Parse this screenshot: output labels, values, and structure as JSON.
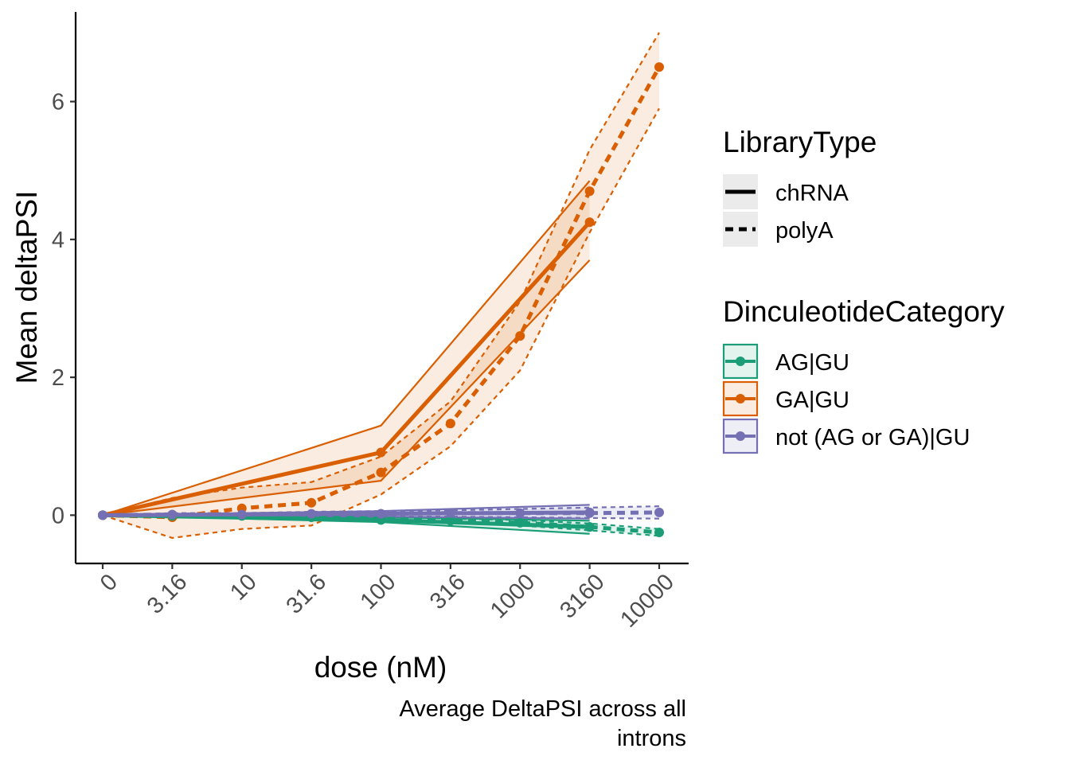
{
  "chart_data": {
    "type": "line",
    "xlabel": "dose (nM)",
    "ylabel": "Mean deltaPSI",
    "caption_lines": [
      "Average DeltaPSI across all",
      "introns"
    ],
    "x_ticks": [
      "0",
      "3.16",
      "10",
      "31.6",
      "100",
      "316",
      "1000",
      "3160",
      "10000"
    ],
    "y_ticks": [
      0,
      2,
      4,
      6
    ],
    "ylim": [
      -0.7,
      7.3
    ],
    "grid": false,
    "legend_position": "right",
    "legend": {
      "linetype_title": "LibraryType",
      "linetype_entries": [
        {
          "label": "chRNA",
          "dash": "solid"
        },
        {
          "label": "polyA",
          "dash": "dashed"
        }
      ],
      "color_title": "DinculeotideCategory",
      "color_entries": [
        {
          "label": "AG|GU",
          "color": "#1b9e77"
        },
        {
          "label": "GA|GU",
          "color": "#d95f02"
        },
        {
          "label": "not (AG or GA)|GU",
          "color": "#7570b3"
        }
      ]
    },
    "series": [
      {
        "category": "GA|GU",
        "library": "chRNA",
        "color": "#d95f02",
        "dash": "solid",
        "x": [
          "0",
          "100",
          "3160"
        ],
        "y": [
          0,
          0.91,
          4.25
        ],
        "lo": [
          0,
          0.5,
          3.7
        ],
        "hi": [
          0,
          1.3,
          4.85
        ]
      },
      {
        "category": "GA|GU",
        "library": "polyA",
        "color": "#d95f02",
        "dash": "dashed",
        "x": [
          "0",
          "3.16",
          "10",
          "31.6",
          "100",
          "316",
          "1000",
          "3160",
          "10000"
        ],
        "y": [
          0,
          -0.03,
          0.1,
          0.18,
          0.62,
          1.33,
          2.6,
          4.7,
          6.5
        ],
        "lo": [
          0,
          -0.33,
          -0.2,
          -0.15,
          0.3,
          1.0,
          2.1,
          4.1,
          5.9
        ],
        "hi": [
          0,
          0.25,
          0.4,
          0.48,
          0.85,
          1.65,
          3.1,
          5.3,
          7.0
        ]
      },
      {
        "category": "AG|GU",
        "library": "chRNA",
        "color": "#1b9e77",
        "dash": "solid",
        "x": [
          "0",
          "100",
          "3160"
        ],
        "y": [
          0,
          -0.07,
          -0.17
        ],
        "lo": [
          0,
          -0.1,
          -0.27
        ],
        "hi": [
          0,
          -0.03,
          -0.08
        ]
      },
      {
        "category": "AG|GU",
        "library": "polyA",
        "color": "#1b9e77",
        "dash": "dashed",
        "x": [
          "0",
          "3.16",
          "10",
          "31.6",
          "100",
          "316",
          "1000",
          "3160",
          "10000"
        ],
        "y": [
          0,
          -0.01,
          -0.01,
          -0.03,
          -0.05,
          -0.08,
          -0.11,
          -0.17,
          -0.25
        ],
        "lo": [
          0,
          -0.03,
          -0.03,
          -0.05,
          -0.08,
          -0.11,
          -0.15,
          -0.22,
          -0.3
        ],
        "hi": [
          0,
          0.01,
          0.01,
          -0.01,
          -0.02,
          -0.05,
          -0.07,
          -0.12,
          -0.2
        ]
      },
      {
        "category": "not (AG or GA)|GU",
        "library": "chRNA",
        "color": "#7570b3",
        "dash": "solid",
        "x": [
          "0",
          "100",
          "3160"
        ],
        "y": [
          0,
          0.02,
          0.04
        ],
        "lo": [
          0,
          -0.02,
          -0.05
        ],
        "hi": [
          0,
          0.06,
          0.15
        ]
      },
      {
        "category": "not (AG or GA)|GU",
        "library": "polyA",
        "color": "#7570b3",
        "dash": "dashed",
        "x": [
          "0",
          "3.16",
          "10",
          "31.6",
          "100",
          "316",
          "1000",
          "3160",
          "10000"
        ],
        "y": [
          0,
          0.01,
          0.01,
          0.02,
          0.02,
          0.03,
          0.03,
          0.03,
          0.04
        ],
        "lo": [
          0,
          -0.01,
          -0.01,
          -0.01,
          -0.02,
          -0.02,
          -0.03,
          -0.04,
          -0.05
        ],
        "hi": [
          0,
          0.03,
          0.03,
          0.05,
          0.06,
          0.07,
          0.09,
          0.11,
          0.13
        ]
      }
    ]
  }
}
